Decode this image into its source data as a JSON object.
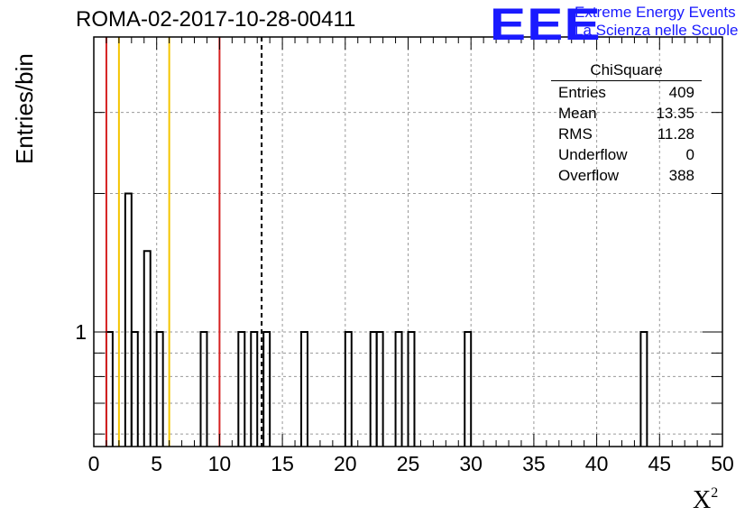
{
  "header": {
    "title": "ROMA-02-2017-10-28-00411",
    "logo_text": "EEE",
    "org_line1": "Extreme Energy Events",
    "org_line2": "La Scienza nelle Scuole"
  },
  "stats": {
    "title": "ChiSquare",
    "rows": [
      {
        "label": "Entries",
        "value": "409"
      },
      {
        "label": "Mean",
        "value": "13.35"
      },
      {
        "label": "RMS",
        "value": "11.28"
      },
      {
        "label": "Underflow",
        "value": "0"
      },
      {
        "label": "Overflow",
        "value": "388"
      }
    ]
  },
  "colors": {
    "red_line": "#d62020",
    "yellow_line": "#f5c400",
    "grid": "#9a9a9a",
    "histogram": "#000000",
    "logo": "#1a1aff"
  },
  "chart_data": {
    "type": "bar",
    "histogram_style": "step",
    "ylabel": "Entries/bin",
    "xlabel": "X",
    "xlabel_superscript": "2",
    "xlim": [
      0,
      50
    ],
    "ylog": true,
    "x_ticks": [
      "0",
      "5",
      "10",
      "15",
      "20",
      "25",
      "30",
      "35",
      "40",
      "45",
      "50"
    ],
    "y_tick_labels": [
      "1"
    ],
    "grid": true,
    "bin_width": 0.5,
    "bins": [
      {
        "x": 1.0,
        "count": 1
      },
      {
        "x": 2.5,
        "count": 2
      },
      {
        "x": 3.0,
        "count": 1
      },
      {
        "x": 4.0,
        "count": 1.5
      },
      {
        "x": 5.0,
        "count": 1
      },
      {
        "x": 8.5,
        "count": 1
      },
      {
        "x": 11.5,
        "count": 1
      },
      {
        "x": 12.5,
        "count": 1
      },
      {
        "x": 13.5,
        "count": 1
      },
      {
        "x": 16.5,
        "count": 1
      },
      {
        "x": 20.0,
        "count": 1
      },
      {
        "x": 22.0,
        "count": 1
      },
      {
        "x": 22.5,
        "count": 1
      },
      {
        "x": 24.0,
        "count": 1
      },
      {
        "x": 25.0,
        "count": 1
      },
      {
        "x": 29.5,
        "count": 1
      },
      {
        "x": 43.5,
        "count": 1
      }
    ],
    "vertical_lines": [
      {
        "x": 1.0,
        "color": "red",
        "style": "solid"
      },
      {
        "x": 2.0,
        "color": "yellow",
        "style": "solid"
      },
      {
        "x": 6.0,
        "color": "yellow",
        "style": "solid"
      },
      {
        "x": 10.0,
        "color": "red",
        "style": "solid"
      },
      {
        "x": 13.35,
        "color": "black",
        "style": "dashed"
      }
    ]
  }
}
